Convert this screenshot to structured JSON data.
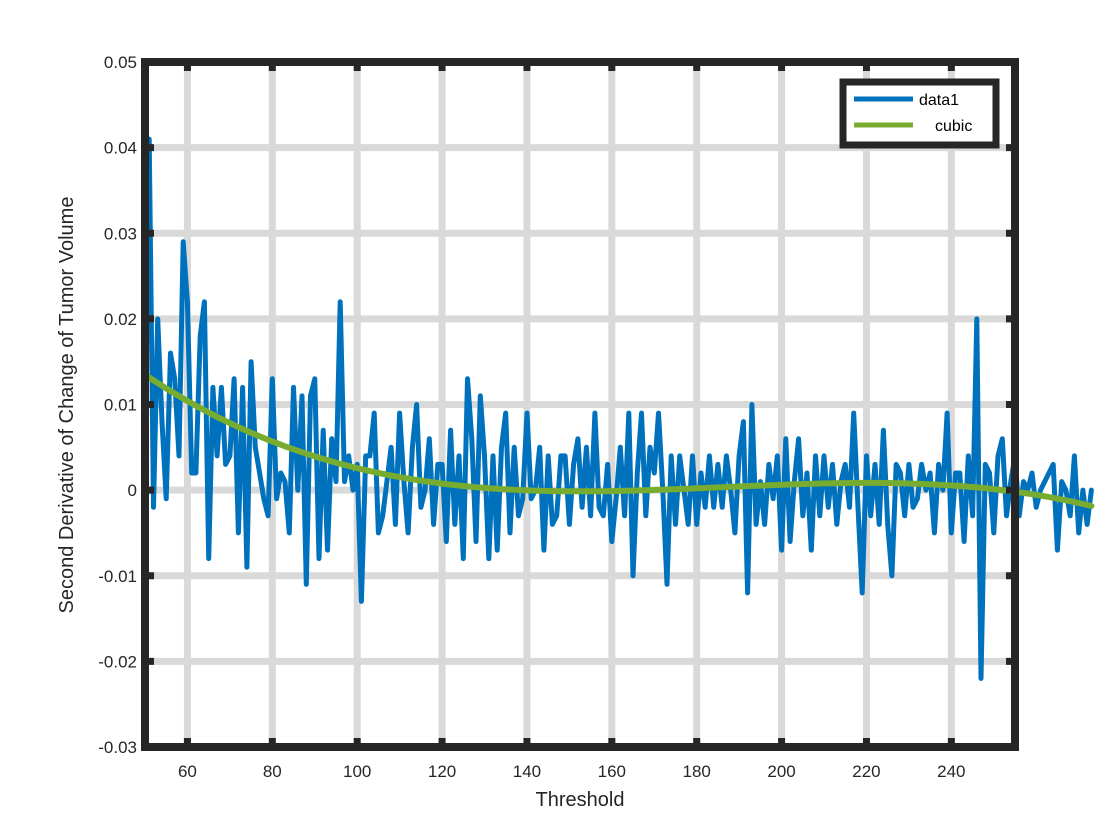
{
  "chart_data": {
    "type": "line",
    "title": "",
    "xlabel": "Threshold",
    "ylabel": "Second Derivative of Change of Tumor Volume",
    "xlim": [
      50,
      255
    ],
    "ylim": [
      -0.03,
      0.05
    ],
    "x_ticks": [
      60,
      80,
      100,
      120,
      140,
      160,
      180,
      200,
      220,
      240
    ],
    "y_ticks": [
      -0.03,
      -0.02,
      -0.01,
      0,
      0.01,
      0.02,
      0.03,
      0.04,
      0.05
    ],
    "x_tick_labels": [
      "60",
      "80",
      "100",
      "120",
      "140",
      "160",
      "180",
      "200",
      "220",
      "240"
    ],
    "y_tick_labels": [
      "-0.03",
      "-0.02",
      "-0.01",
      "0",
      "0.01",
      "0.02",
      "0.03",
      "0.04",
      "0.05"
    ],
    "grid": true,
    "legend_position": "top-right",
    "series": [
      {
        "name": "data1",
        "color": "#0072BD",
        "x_start": 50,
        "x_step": 1,
        "values": [
          0.022,
          0.041,
          -0.002,
          0.02,
          0.008,
          -0.001,
          0.016,
          0.013,
          0.004,
          0.029,
          0.022,
          0.002,
          0.002,
          0.018,
          0.022,
          -0.008,
          0.012,
          0.004,
          0.012,
          0.003,
          0.004,
          0.013,
          -0.005,
          0.012,
          -0.009,
          0.015,
          0.005,
          0.002,
          -0.001,
          -0.003,
          0.013,
          -0.001,
          0.002,
          0.001,
          -0.005,
          0.012,
          0.0,
          0.011,
          -0.011,
          0.011,
          0.013,
          -0.008,
          0.007,
          -0.007,
          0.006,
          0.001,
          0.022,
          0.001,
          0.004,
          0.0,
          0.003,
          -0.013,
          0.004,
          0.004,
          0.009,
          -0.005,
          -0.003,
          0.001,
          0.005,
          -0.004,
          0.009,
          0.001,
          -0.005,
          0.005,
          0.01,
          -0.002,
          0.0,
          0.006,
          -0.004,
          0.003,
          0.003,
          -0.006,
          0.007,
          -0.004,
          0.004,
          -0.008,
          0.013,
          0.006,
          -0.006,
          0.011,
          0.004,
          -0.008,
          0.004,
          -0.007,
          0.005,
          0.009,
          -0.005,
          0.005,
          -0.003,
          -0.001,
          0.009,
          -0.001,
          0.0,
          0.005,
          -0.007,
          0.004,
          -0.004,
          -0.003,
          0.004,
          0.004,
          -0.004,
          0.003,
          0.006,
          -0.002,
          0.005,
          -0.003,
          0.009,
          -0.002,
          -0.003,
          0.003,
          -0.006,
          -0.001,
          0.005,
          -0.003,
          0.009,
          -0.01,
          0.002,
          0.009,
          -0.003,
          0.005,
          0.002,
          0.009,
          0.0,
          -0.011,
          0.004,
          -0.004,
          0.004,
          0.0,
          -0.004,
          0.004,
          -0.004,
          0.002,
          -0.002,
          0.004,
          -0.002,
          0.003,
          -0.002,
          0.004,
          0.0,
          -0.005,
          0.004,
          0.008,
          -0.012,
          0.01,
          -0.004,
          0.001,
          -0.004,
          0.003,
          -0.001,
          0.004,
          -0.007,
          0.006,
          -0.006,
          0.001,
          0.006,
          -0.003,
          0.002,
          -0.007,
          0.004,
          -0.003,
          0.004,
          -0.002,
          0.003,
          -0.004,
          0.001,
          0.003,
          -0.002,
          0.009,
          -0.002,
          -0.012,
          0.004,
          -0.003,
          0.003,
          -0.004,
          0.007,
          -0.004,
          -0.01,
          0.003,
          0.002,
          -0.003,
          0.003,
          -0.002,
          -0.001,
          0.003,
          0.0,
          0.002,
          -0.005,
          0.003,
          0.0,
          0.009,
          -0.005,
          0.002,
          0.002,
          -0.006,
          0.004,
          -0.003,
          0.02,
          -0.022,
          0.003,
          0.002,
          -0.005,
          0.004,
          0.006,
          -0.003,
          0.001,
          0.004,
          -0.003,
          0.001,
          0.0,
          0.002,
          -0.002,
          0.0,
          0.001,
          0.002,
          0.003,
          -0.007,
          0.001,
          0.0,
          -0.003,
          0.004,
          -0.005,
          0.0,
          -0.004,
          0.0
        ]
      },
      {
        "name": "cubic",
        "color": "#77AC30",
        "fit": "cubic"
      }
    ]
  }
}
